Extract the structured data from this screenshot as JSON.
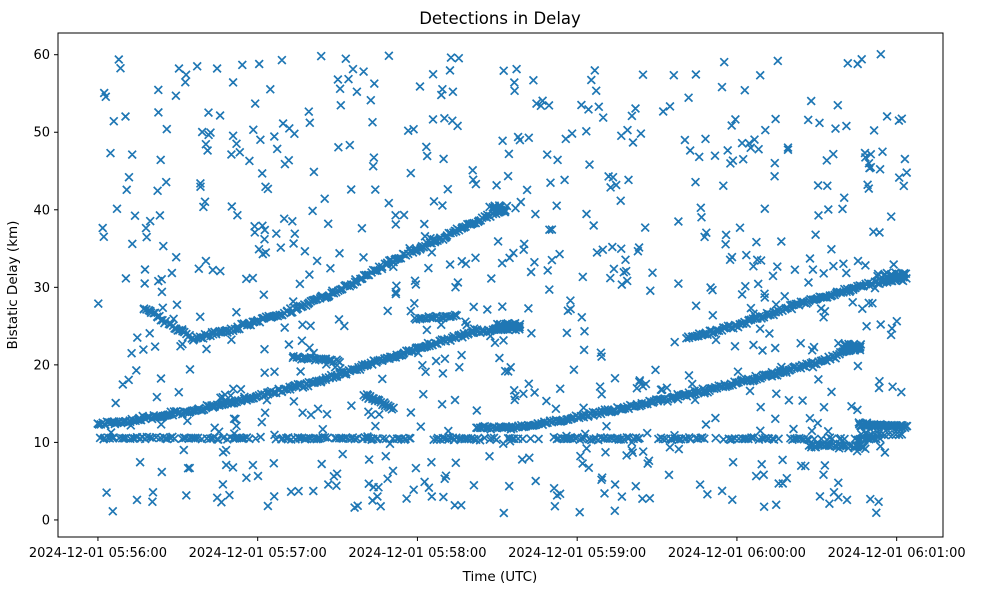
{
  "figure": {
    "title": "Detections in Delay"
  },
  "chart_data": {
    "type": "scatter",
    "title": "Detections in Delay",
    "xlabel": "Time (UTC)",
    "ylabel": "Bistatic Delay (km)",
    "marker": "x",
    "marker_color": "#1f77b4",
    "background_color": "#ffffff",
    "grid": false,
    "legend": null,
    "time_origin": "2024-12-01 05:56:00",
    "xlim_s": [
      -15.0,
      317.4
    ],
    "ylim": [
      -2.2,
      62.8
    ],
    "x_ticks": {
      "times_s": [
        0,
        60,
        120,
        180,
        240,
        300
      ],
      "labels": [
        "2024-12-01 05:56:00",
        "2024-12-01 05:57:00",
        "2024-12-01 05:58:00",
        "2024-12-01 05:59:00",
        "2024-12-01 06:00:00",
        "2024-12-01 06:01:00"
      ]
    },
    "y_ticks": [
      0,
      10,
      20,
      30,
      40,
      50,
      60
    ],
    "seed": 20241201,
    "tracks": [
      {
        "name": "track-main-rise",
        "points": [
          [
            0,
            12.3
          ],
          [
            20,
            13.2
          ],
          [
            40,
            14.4
          ],
          [
            60,
            15.9
          ],
          [
            85,
            18.1
          ],
          [
            105,
            20.4
          ],
          [
            122,
            22.3
          ],
          [
            140,
            24.1
          ],
          [
            152,
            24.8
          ],
          [
            158,
            25.0
          ]
        ],
        "density_per_s": 1.7,
        "jitter_km": 0.22,
        "gaps": [],
        "drop": 0
      },
      {
        "name": "track-v-dip-rise",
        "points": [
          [
            17,
            27.4
          ],
          [
            25,
            25.6
          ],
          [
            36,
            23.3
          ],
          [
            50,
            24.6
          ],
          [
            68,
            26.4
          ],
          [
            90,
            29.5
          ],
          [
            110,
            33.3
          ],
          [
            132,
            36.8
          ],
          [
            153,
            40.2
          ]
        ],
        "density_per_s": 1.6,
        "jitter_km": 0.22,
        "gaps": [],
        "drop": 0
      },
      {
        "name": "track-flat-21",
        "points": [
          [
            73,
            21.0
          ],
          [
            91,
            20.5
          ]
        ],
        "density_per_s": 1.4,
        "jitter_km": 0.15,
        "gaps": [],
        "drop": 0
      },
      {
        "name": "track-descend-15",
        "points": [
          [
            100,
            16.1
          ],
          [
            111,
            14.4
          ]
        ],
        "density_per_s": 2.4,
        "jitter_km": 0.18,
        "gaps": [],
        "drop": 0
      },
      {
        "name": "track-parallel-26",
        "points": [
          [
            119,
            25.9
          ],
          [
            135,
            26.3
          ]
        ],
        "density_per_s": 1.4,
        "jitter_km": 0.15,
        "gaps": [],
        "drop": 0
      },
      {
        "name": "track-second-rise",
        "points": [
          [
            142,
            11.8
          ],
          [
            152,
            11.9
          ],
          [
            163,
            12.15
          ],
          [
            181,
            13.4
          ],
          [
            206,
            15.0
          ],
          [
            231,
            16.9
          ],
          [
            256,
            19.0
          ],
          [
            270,
            20.3
          ],
          [
            285,
            22.2
          ]
        ],
        "density_per_s": 1.6,
        "jitter_km": 0.22,
        "gaps": [],
        "drop": 0
      },
      {
        "name": "track-third-rise",
        "points": [
          [
            221,
            23.4
          ],
          [
            240,
            25.1
          ],
          [
            262,
            27.7
          ],
          [
            285,
            30.0
          ],
          [
            302,
            31.3
          ]
        ],
        "density_per_s": 1.6,
        "jitter_km": 0.22,
        "gaps": [],
        "drop": 0
      },
      {
        "name": "line-10p5-km",
        "points": [
          [
            1,
            10.55
          ],
          [
            295,
            10.45
          ]
        ],
        "density_per_s": 1.15,
        "jitter_km": 0.13,
        "gaps": [
          [
            63,
            67
          ],
          [
            118,
            125
          ],
          [
            166,
            171
          ],
          [
            205,
            209
          ],
          [
            228,
            232
          ],
          [
            256,
            260
          ],
          [
            281,
            284
          ]
        ],
        "drop": 0.18
      },
      {
        "name": "track-right-12km",
        "points": [
          [
            286,
            12.25
          ],
          [
            304,
            12.0
          ]
        ],
        "density_per_s": 2.8,
        "jitter_km": 0.15,
        "gaps": [],
        "drop": 0
      },
      {
        "name": "track-right-11km",
        "points": [
          [
            287,
            11.1
          ],
          [
            303,
            10.9
          ]
        ],
        "density_per_s": 0.8,
        "jitter_km": 0.12,
        "gaps": [],
        "drop": 0
      },
      {
        "name": "track-9p5-km",
        "points": [
          [
            267,
            9.65
          ],
          [
            289,
            9.4
          ]
        ],
        "density_per_s": 1.5,
        "jitter_km": 0.2,
        "gaps": [],
        "drop": 0
      }
    ],
    "blobs": [
      {
        "name": "blob-main-rise-end",
        "t_range_s": [
          149,
          159
        ],
        "delay_range_km": [
          24.5,
          25.4
        ],
        "count": 35
      },
      {
        "name": "blob-v-track-end",
        "t_range_s": [
          147,
          154
        ],
        "delay_range_km": [
          39.6,
          40.6
        ],
        "count": 18
      },
      {
        "name": "blob-second-rise-end",
        "t_range_s": [
          279,
          287
        ],
        "delay_range_km": [
          21.9,
          22.7
        ],
        "count": 22
      },
      {
        "name": "blob-third-rise-end",
        "t_range_s": [
          295,
          304
        ],
        "delay_range_km": [
          30.6,
          31.9
        ],
        "count": 28
      },
      {
        "name": "blob-clutter-topright",
        "t_range_s": [
          288,
          296
        ],
        "delay_range_km": [
          45.0,
          47.5
        ],
        "count": 7
      }
    ],
    "clutter": {
      "count": 720,
      "t_range_s": [
        0,
        304
      ],
      "delay_range_km": [
        0.8,
        60.2
      ]
    }
  }
}
